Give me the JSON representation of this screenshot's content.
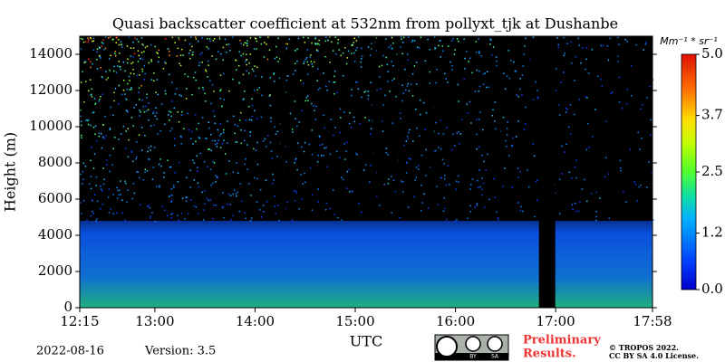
{
  "chart_data": {
    "type": "heatmap",
    "title": "Quasi backscatter coefficient at 532nm from pollyxt_tjk at Dushanbe",
    "xlabel": "UTC",
    "ylabel": "Height (m)",
    "xlim": [
      "12:15",
      "17:58"
    ],
    "xticks": [
      "12:15",
      "13:00",
      "14:00",
      "15:00",
      "16:00",
      "17:00",
      "17:58"
    ],
    "ylim": [
      0,
      15000
    ],
    "yticks": [
      0,
      2000,
      4000,
      6000,
      8000,
      10000,
      12000,
      14000
    ],
    "colorbar": {
      "label": "Mm⁻¹ * sr⁻¹",
      "lim": [
        0,
        5.0
      ],
      "ticks": [
        {
          "value": 0,
          "label": "0.0"
        },
        1.2,
        2.5,
        3.7,
        {
          "value": 5.0,
          "label": "5.0"
        }
      ]
    }
  },
  "footer": {
    "date": "2022-08-16",
    "version": "Version: 3.5",
    "preliminary": [
      "Preliminary",
      "Results."
    ],
    "logo": [
      "BY",
      "SA"
    ],
    "copyright": [
      "© TROPOS 2022.",
      "CC BY SA 4.0 License."
    ]
  }
}
